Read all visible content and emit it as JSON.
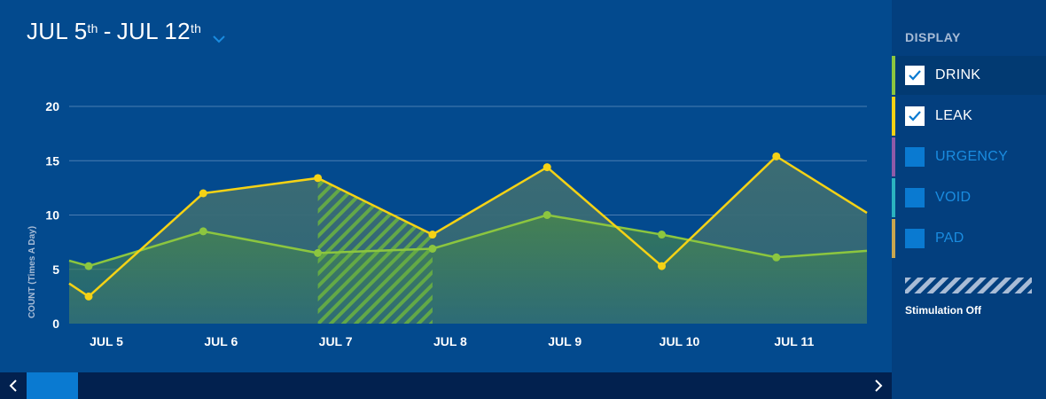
{
  "header": {
    "range_start_month": "JUL 5",
    "range_start_suffix": "th",
    "range_separator": "-",
    "range_end_month": "JUL 12",
    "range_end_suffix": "th",
    "dropdown_icon": "chevron-down-icon"
  },
  "sidebar": {
    "title": "DISPLAY",
    "items": [
      {
        "label": "DRINK",
        "checked": true,
        "color": "#8cc63f"
      },
      {
        "label": "LEAK",
        "checked": true,
        "color": "#f5d215"
      },
      {
        "label": "URGENCY",
        "checked": false,
        "color": "#8e5aa8"
      },
      {
        "label": "VOID",
        "checked": false,
        "color": "#2bb3c0"
      },
      {
        "label": "PAD",
        "checked": false,
        "color": "#c9a64f"
      }
    ],
    "stimulation_label": "Stimulation Off"
  },
  "scrollbar": {
    "left_icon": "chevron-left-icon",
    "right_icon": "chevron-right-icon"
  },
  "chart_data": {
    "type": "line",
    "title": "",
    "xlabel": "",
    "ylabel": "COUNT (Times A Day)",
    "ylim": [
      0,
      20
    ],
    "yticks": [
      0,
      5,
      10,
      15,
      20
    ],
    "categories": [
      "JUL 5",
      "JUL 6",
      "JUL 7",
      "JUL 8",
      "JUL 9",
      "JUL 10",
      "JUL 11"
    ],
    "grid": true,
    "series": [
      {
        "name": "LEAK",
        "color": "#f5d215",
        "x": [
          5,
          6,
          7,
          8,
          9,
          10,
          11
        ],
        "values": [
          2.5,
          12,
          13.4,
          8.2,
          14.4,
          5.3,
          15.4
        ],
        "start_value": 3.7,
        "end_value": 10.2
      },
      {
        "name": "DRINK",
        "color": "#8cc63f",
        "x": [
          5,
          6,
          7,
          8,
          9,
          10,
          11
        ],
        "values": [
          5.3,
          8.5,
          6.5,
          6.9,
          10.0,
          8.2,
          6.1
        ],
        "start_value": 5.8,
        "end_value": 6.7
      }
    ],
    "stimulation_off_ranges": [
      [
        7,
        8
      ]
    ]
  }
}
